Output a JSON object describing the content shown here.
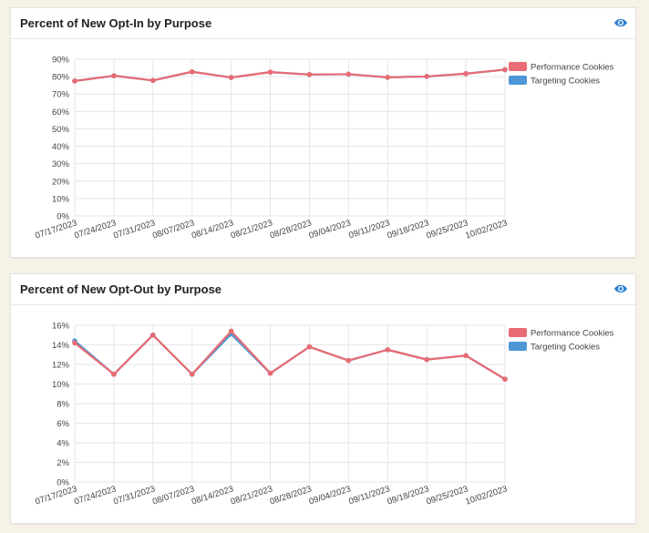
{
  "charts": [
    {
      "title": "Percent of New Opt-In by Purpose",
      "eye_icon": "eye-icon"
    },
    {
      "title": "Percent of New Opt-Out by Purpose",
      "eye_icon": "eye-icon"
    }
  ],
  "colors": {
    "performance": "#e96b74",
    "targeting": "#4d97d6",
    "accent": "#2d7fd3",
    "grid": "#e6e6e6"
  },
  "chart_data": [
    {
      "type": "line",
      "title": "Percent of New Opt-In by Purpose",
      "x": [
        "07/17/2023",
        "07/24/2023",
        "07/31/2023",
        "08/07/2023",
        "08/14/2023",
        "08/21/2023",
        "08/28/2023",
        "09/04/2023",
        "09/11/2023",
        "09/18/2023",
        "09/25/2023",
        "10/02/2023"
      ],
      "yticks": [
        "0%",
        "10%",
        "20%",
        "30%",
        "40%",
        "50%",
        "60%",
        "70%",
        "80%",
        "90%"
      ],
      "ylim": [
        0,
        90
      ],
      "series": [
        {
          "name": "Performance Cookies",
          "values": [
            77.5,
            80.5,
            77.8,
            82.8,
            79.5,
            82.6,
            81.2,
            81.4,
            79.6,
            80.1,
            81.7,
            84.0
          ]
        },
        {
          "name": "Targeting Cookies",
          "values": [
            77.5,
            80.5,
            77.8,
            82.8,
            79.5,
            82.6,
            81.2,
            81.4,
            79.6,
            80.1,
            81.7,
            84.0
          ]
        }
      ],
      "legend": "right",
      "grid": true
    },
    {
      "type": "line",
      "title": "Percent of New Opt-Out by Purpose",
      "x": [
        "07/17/2023",
        "07/24/2023",
        "07/31/2023",
        "08/07/2023",
        "08/14/2023",
        "08/21/2023",
        "08/28/2023",
        "09/04/2023",
        "09/11/2023",
        "09/18/2023",
        "09/25/2023",
        "10/02/2023"
      ],
      "yticks": [
        "0%",
        "2%",
        "4%",
        "6%",
        "8%",
        "10%",
        "12%",
        "14%",
        "16%"
      ],
      "ylim": [
        0,
        16
      ],
      "series": [
        {
          "name": "Performance Cookies",
          "values": [
            14.2,
            11.0,
            15.0,
            11.0,
            15.4,
            11.1,
            13.8,
            12.4,
            13.5,
            12.5,
            12.9,
            10.5
          ]
        },
        {
          "name": "Targeting Cookies",
          "values": [
            14.4,
            11.0,
            15.0,
            11.0,
            15.1,
            11.1,
            13.8,
            12.4,
            13.5,
            12.5,
            12.9,
            10.5
          ]
        }
      ],
      "legend": "right",
      "grid": true
    }
  ]
}
